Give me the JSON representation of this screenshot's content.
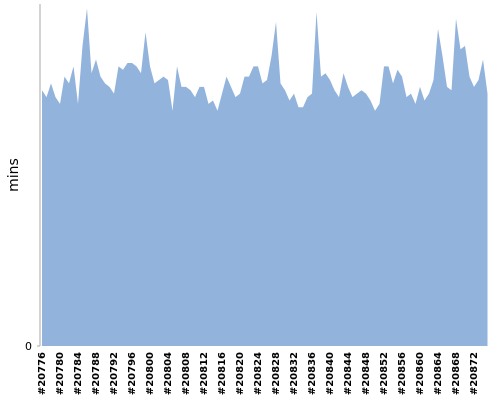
{
  "chart_data": {
    "type": "area",
    "y_label": "mins",
    "color": "#92b3dc",
    "ylim": [
      0,
      10
    ],
    "yticks": [
      0
    ],
    "categories": [
      "#20776",
      null,
      null,
      null,
      "#20780",
      null,
      null,
      null,
      "#20784",
      null,
      null,
      null,
      "#20788",
      null,
      null,
      null,
      "#20792",
      null,
      null,
      null,
      "#20796",
      null,
      null,
      null,
      "#20800",
      null,
      null,
      null,
      "#20804",
      null,
      null,
      null,
      "#20808",
      null,
      null,
      null,
      "#20812",
      null,
      null,
      null,
      "#20816",
      null,
      null,
      null,
      "#20820",
      null,
      null,
      null,
      "#20824",
      null,
      null,
      null,
      "#20828",
      null,
      null,
      null,
      "#20832",
      null,
      null,
      null,
      "#20836",
      null,
      null,
      null,
      "#20840",
      null,
      null,
      null,
      "#20844",
      null,
      null,
      null,
      "#20848",
      null,
      null,
      null,
      "#20852",
      null,
      null,
      null,
      "#20856",
      null,
      null,
      null,
      "#20860",
      null,
      null,
      null,
      "#20864",
      null,
      null,
      null,
      "#20868",
      null,
      null,
      null,
      "#20872",
      null,
      null,
      null
    ],
    "values": [
      7.5,
      7.3,
      7.7,
      7.3,
      7.1,
      7.9,
      7.7,
      8.2,
      7.1,
      8.8,
      9.9,
      8.0,
      8.4,
      7.9,
      7.7,
      7.6,
      7.4,
      8.2,
      8.1,
      8.3,
      8.3,
      8.2,
      8.0,
      9.2,
      8.2,
      7.7,
      7.8,
      7.9,
      7.8,
      6.9,
      8.2,
      7.6,
      7.6,
      7.5,
      7.3,
      7.6,
      7.6,
      7.1,
      7.2,
      6.9,
      7.4,
      7.9,
      7.6,
      7.3,
      7.4,
      7.9,
      7.9,
      8.2,
      8.2,
      7.7,
      7.8,
      8.5,
      9.5,
      7.7,
      7.5,
      7.2,
      7.4,
      7.0,
      7.0,
      7.3,
      7.4,
      9.8,
      7.9,
      8.0,
      7.8,
      7.5,
      7.3,
      8.0,
      7.6,
      7.3,
      7.4,
      7.5,
      7.4,
      7.2,
      6.9,
      7.1,
      8.2,
      8.2,
      7.7,
      8.1,
      7.9,
      7.3,
      7.4,
      7.1,
      7.6,
      7.2,
      7.4,
      7.8,
      9.3,
      8.5,
      7.6,
      7.5,
      9.6,
      8.7,
      8.8,
      7.9,
      7.6,
      7.8,
      8.4,
      7.4
    ]
  }
}
